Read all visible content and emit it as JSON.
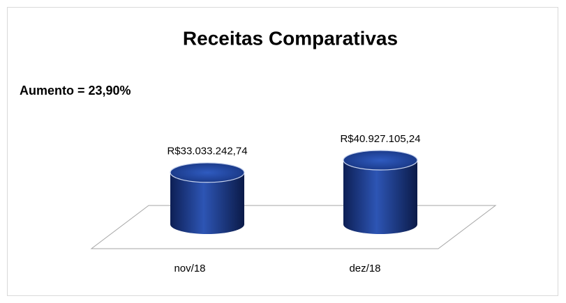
{
  "chart_data": {
    "type": "bar",
    "title": "Receitas Comparativas",
    "annotation": "Aumento = 23,90%",
    "categories": [
      "nov/18",
      "dez/18"
    ],
    "values": [
      33033242.74,
      40927105.24
    ],
    "value_labels": [
      "R$33.033.242,74",
      "R$40.927.105,24"
    ],
    "color": "#1f3f8f"
  }
}
